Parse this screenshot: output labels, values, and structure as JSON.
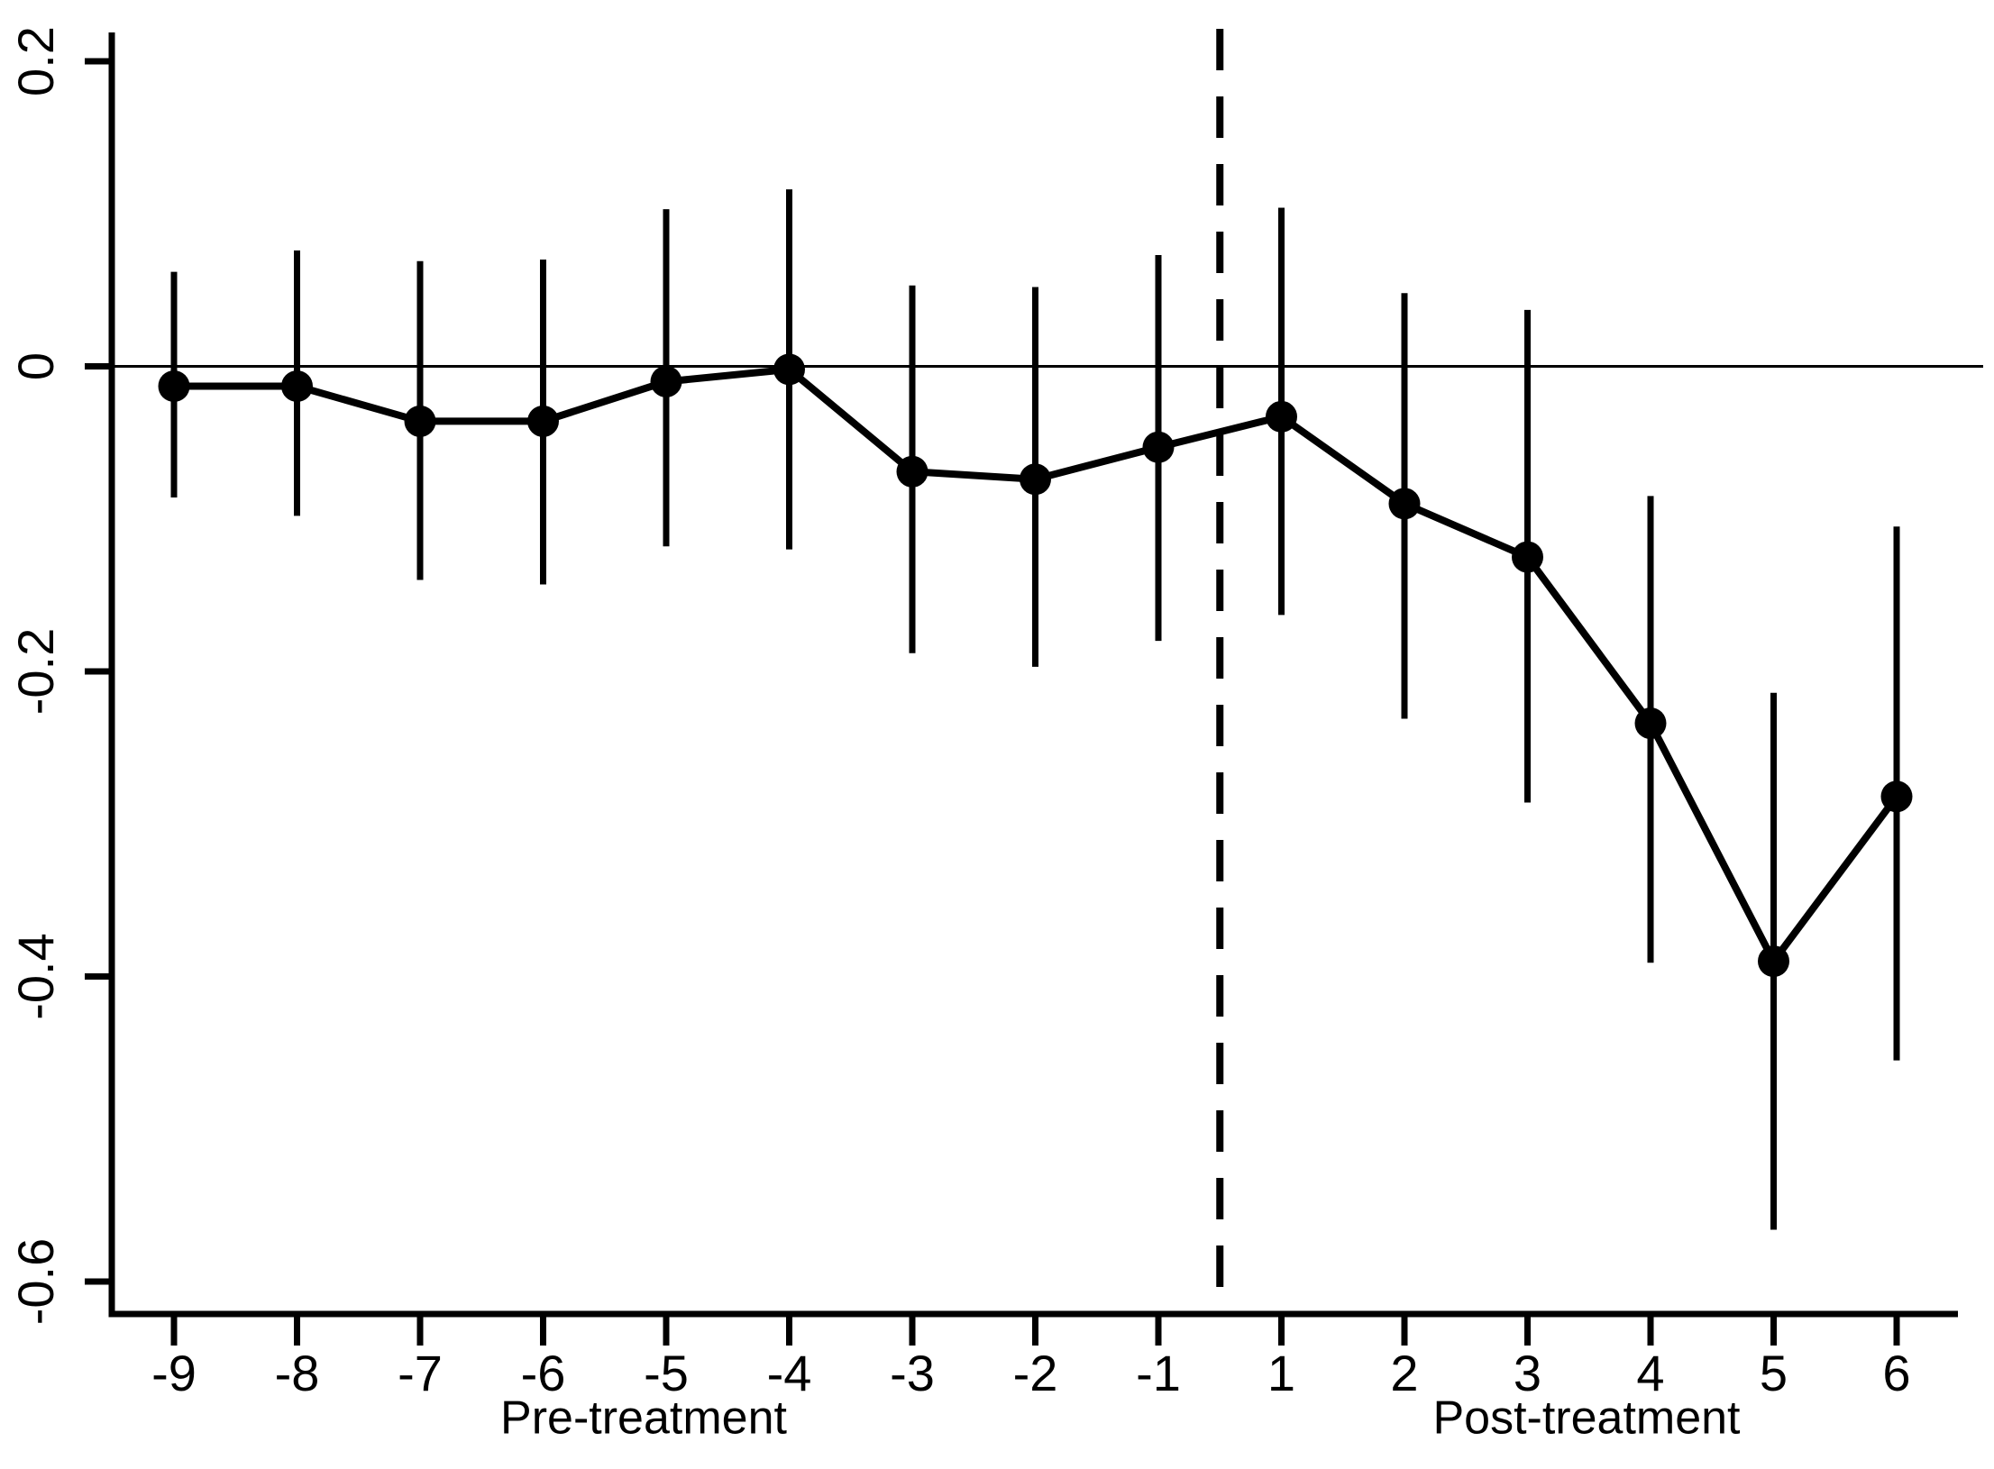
{
  "chart_data": {
    "type": "line",
    "subtype": "event-study coefficient plot with 95% confidence interval error bars",
    "title": "",
    "xlabel": "",
    "ylabel": "",
    "categories": [
      "-9",
      "-8",
      "-7",
      "-6",
      "-5",
      "-4",
      "-3",
      "-2",
      "-1",
      "1",
      "2",
      "3",
      "4",
      "5",
      "6"
    ],
    "series": [
      {
        "name": "coefficient",
        "values": [
          -0.013,
          -0.013,
          -0.036,
          -0.036,
          -0.01,
          -0.002,
          -0.069,
          -0.074,
          -0.053,
          -0.033,
          -0.09,
          -0.125,
          -0.234,
          -0.39,
          -0.282
        ],
        "ci_high": [
          0.062,
          0.076,
          0.069,
          0.07,
          0.103,
          0.116,
          0.053,
          0.052,
          0.073,
          0.104,
          0.048,
          0.037,
          -0.085,
          -0.214,
          -0.105
        ],
        "ci_low": [
          -0.086,
          -0.098,
          -0.14,
          -0.143,
          -0.118,
          -0.12,
          -0.188,
          -0.197,
          -0.18,
          -0.163,
          -0.231,
          -0.286,
          -0.391,
          -0.566,
          -0.455
        ]
      }
    ],
    "yticks": [
      {
        "value": 0.2,
        "label": "0.2"
      },
      {
        "value": 0.0,
        "label": "0"
      },
      {
        "value": -0.2,
        "label": "-0.2"
      },
      {
        "value": -0.4,
        "label": "-0.4"
      },
      {
        "value": -0.6,
        "label": "-0.6"
      }
    ],
    "ylim": [
      -0.62,
      0.22
    ],
    "grid": false,
    "legend": "none",
    "reference_lines": {
      "horizontal_at_y": 0,
      "vertical_dashed_between_categories": [
        "-1",
        "1"
      ]
    },
    "axis_group_labels": {
      "pre": "Pre-treatment",
      "post": "Post-treatment"
    },
    "colors": {
      "foreground": "#000000",
      "background": "#ffffff"
    }
  }
}
